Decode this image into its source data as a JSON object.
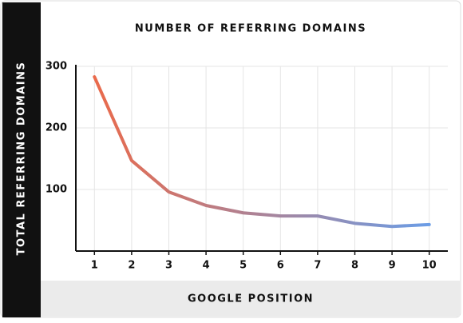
{
  "chart_data": {
    "type": "line",
    "title": "NUMBER OF REFERRING DOMAINS",
    "x_label": "GOOGLE POSITION",
    "y_label": "TOTAL REFERRING DOMAINS",
    "x": [
      1,
      2,
      3,
      4,
      5,
      6,
      7,
      8,
      9,
      10
    ],
    "values": [
      283,
      147,
      96,
      74,
      62,
      57,
      57,
      45,
      40,
      43
    ],
    "gradient": [
      "#ea6a4b",
      "#6b9de6"
    ],
    "xlim": [
      0.5,
      10.5
    ],
    "xticks": [
      1,
      2,
      3,
      4,
      5,
      6,
      7,
      8,
      9,
      10
    ],
    "ylim": [
      0,
      300
    ],
    "yticks": [
      100,
      200,
      300
    ],
    "grid": true
  }
}
